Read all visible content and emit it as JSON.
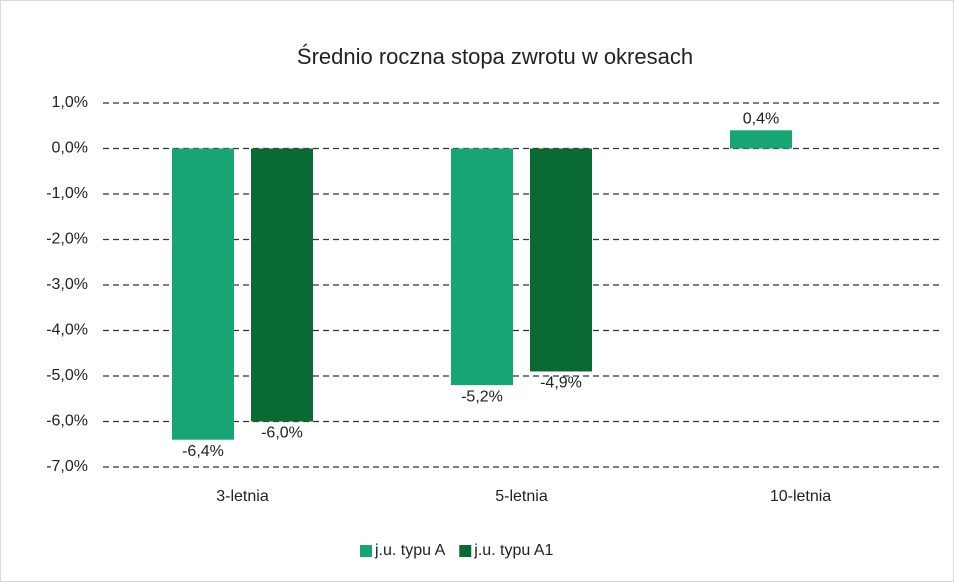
{
  "chart_data": {
    "type": "bar",
    "title": "Średnio roczna stopa zwrotu w okresach",
    "categories": [
      "3-letnia",
      "5-letnia",
      "10-letnia"
    ],
    "series": [
      {
        "name": "j.u. typu A",
        "color": "#17a673",
        "values": [
          -6.4,
          -5.2,
          0.4
        ],
        "value_labels": [
          "-6,4%",
          "-5,2%",
          "0,4%"
        ]
      },
      {
        "name": "j.u. typu A1",
        "color": "#0a6a33",
        "values": [
          -6.0,
          -4.9,
          null
        ],
        "value_labels": [
          "-6,0%",
          "-4,9%",
          null
        ]
      }
    ],
    "ylim": [
      -7,
      1
    ],
    "yticks": [
      {
        "value": 1,
        "label": "1,0%"
      },
      {
        "value": 0,
        "label": "0,0%"
      },
      {
        "value": -1,
        "label": "-1,0%"
      },
      {
        "value": -2,
        "label": "-2,0%"
      },
      {
        "value": -3,
        "label": "-3,0%"
      },
      {
        "value": -4,
        "label": "-4,0%"
      },
      {
        "value": -5,
        "label": "-5,0%"
      },
      {
        "value": -6,
        "label": "-6,0%"
      },
      {
        "value": -7,
        "label": "-7,0%"
      }
    ],
    "grid": true,
    "legend": "bottom"
  }
}
